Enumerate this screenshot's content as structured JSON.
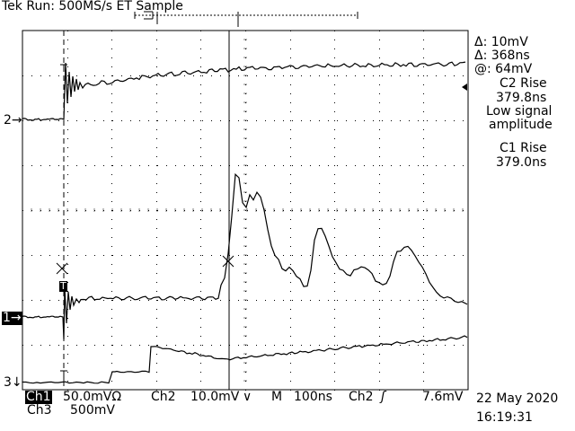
{
  "header": {
    "status": "Tek Run: 500MS/s ET Sample"
  },
  "readout": {
    "delta_v": "Δ: 10mV",
    "delta_t": "Δ: 368ns",
    "at_v": "@: 64mV",
    "c2_title": "C2 Rise",
    "c2_value": "379.8ns",
    "c2_note1": "Low signal",
    "c2_note2": "amplitude",
    "c1_title": "C1 Rise",
    "c1_value": "379.0ns"
  },
  "markers": {
    "ch2": "2",
    "ch1": "1",
    "ch3": "3",
    "trigger": "T"
  },
  "footer": {
    "ch1_label": "Ch1",
    "ch1_scale": "50.0mVΩ",
    "ch2_label": "Ch2",
    "ch2_scale": "10.0mV",
    "ch2_coupling": "∨",
    "timebase_label": "M",
    "timebase": "100ns",
    "trig_source": "Ch2",
    "trig_slope": "ʃ",
    "trig_level": "7.6mV",
    "ch3_label": "Ch3",
    "ch3_scale": "500mV",
    "date": "22 May 2020",
    "time": "16:19:31"
  },
  "colors": {
    "background": "#ffffff",
    "trace": "#000000"
  }
}
